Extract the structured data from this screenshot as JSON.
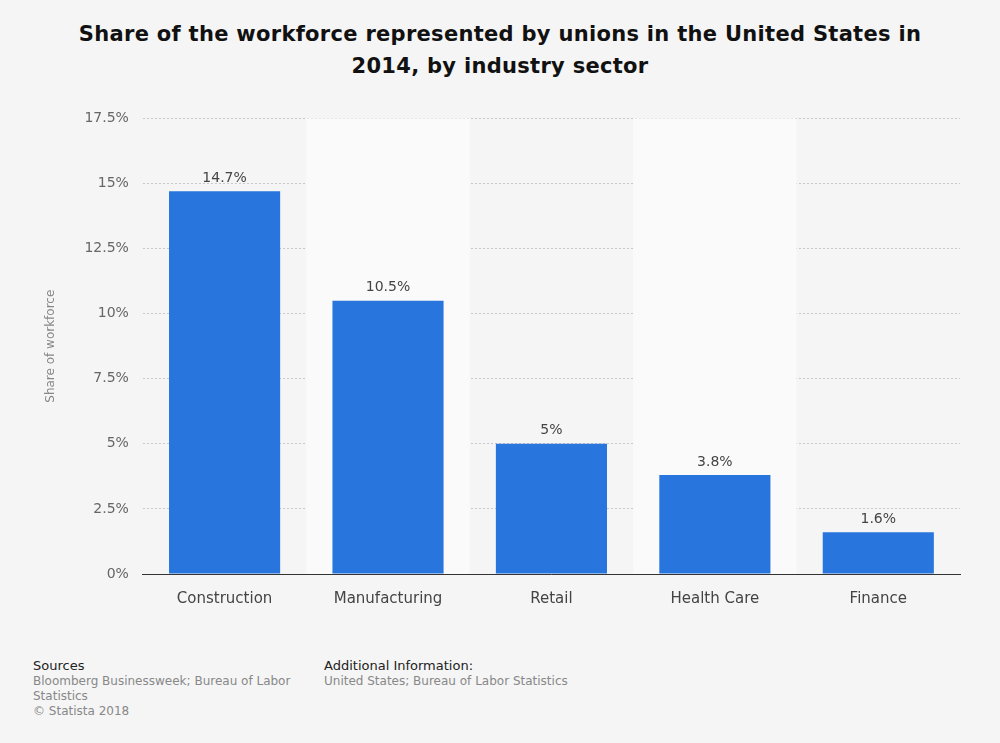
{
  "chart_data": {
    "type": "bar",
    "title": "Share of the workforce represented by unions in the United States in 2014, by industry sector",
    "y_label": "Share of workforce",
    "categories": [
      "Construction",
      "Manufacturing",
      "Retail",
      "Health Care",
      "Finance"
    ],
    "values": [
      14.7,
      10.5,
      5,
      3.8,
      1.6
    ],
    "value_labels": [
      "14.7%",
      "10.5%",
      "5%",
      "3.8%",
      "1.6%"
    ],
    "color": "#2876dd",
    "ylim": [
      0,
      17.5
    ],
    "yticks": [
      {
        "value": 0,
        "label": "0%"
      },
      {
        "value": 2.5,
        "label": "2.5%"
      },
      {
        "value": 5,
        "label": "5%"
      },
      {
        "value": 7.5,
        "label": "7.5%"
      },
      {
        "value": 10,
        "label": "10%"
      },
      {
        "value": 12.5,
        "label": "12.5%"
      },
      {
        "value": 15,
        "label": "15%"
      },
      {
        "value": 17.5,
        "label": "17.5%"
      }
    ],
    "grid": true,
    "data_labels": true,
    "sources_heading": "Sources",
    "sources": "Bloomberg Businessweek; Bureau of Labor Statistics",
    "copyright": "© Statista 2018",
    "additional_info_heading": "Additional Information:",
    "additional_info": "United States; Bureau of Labor Statistics"
  }
}
